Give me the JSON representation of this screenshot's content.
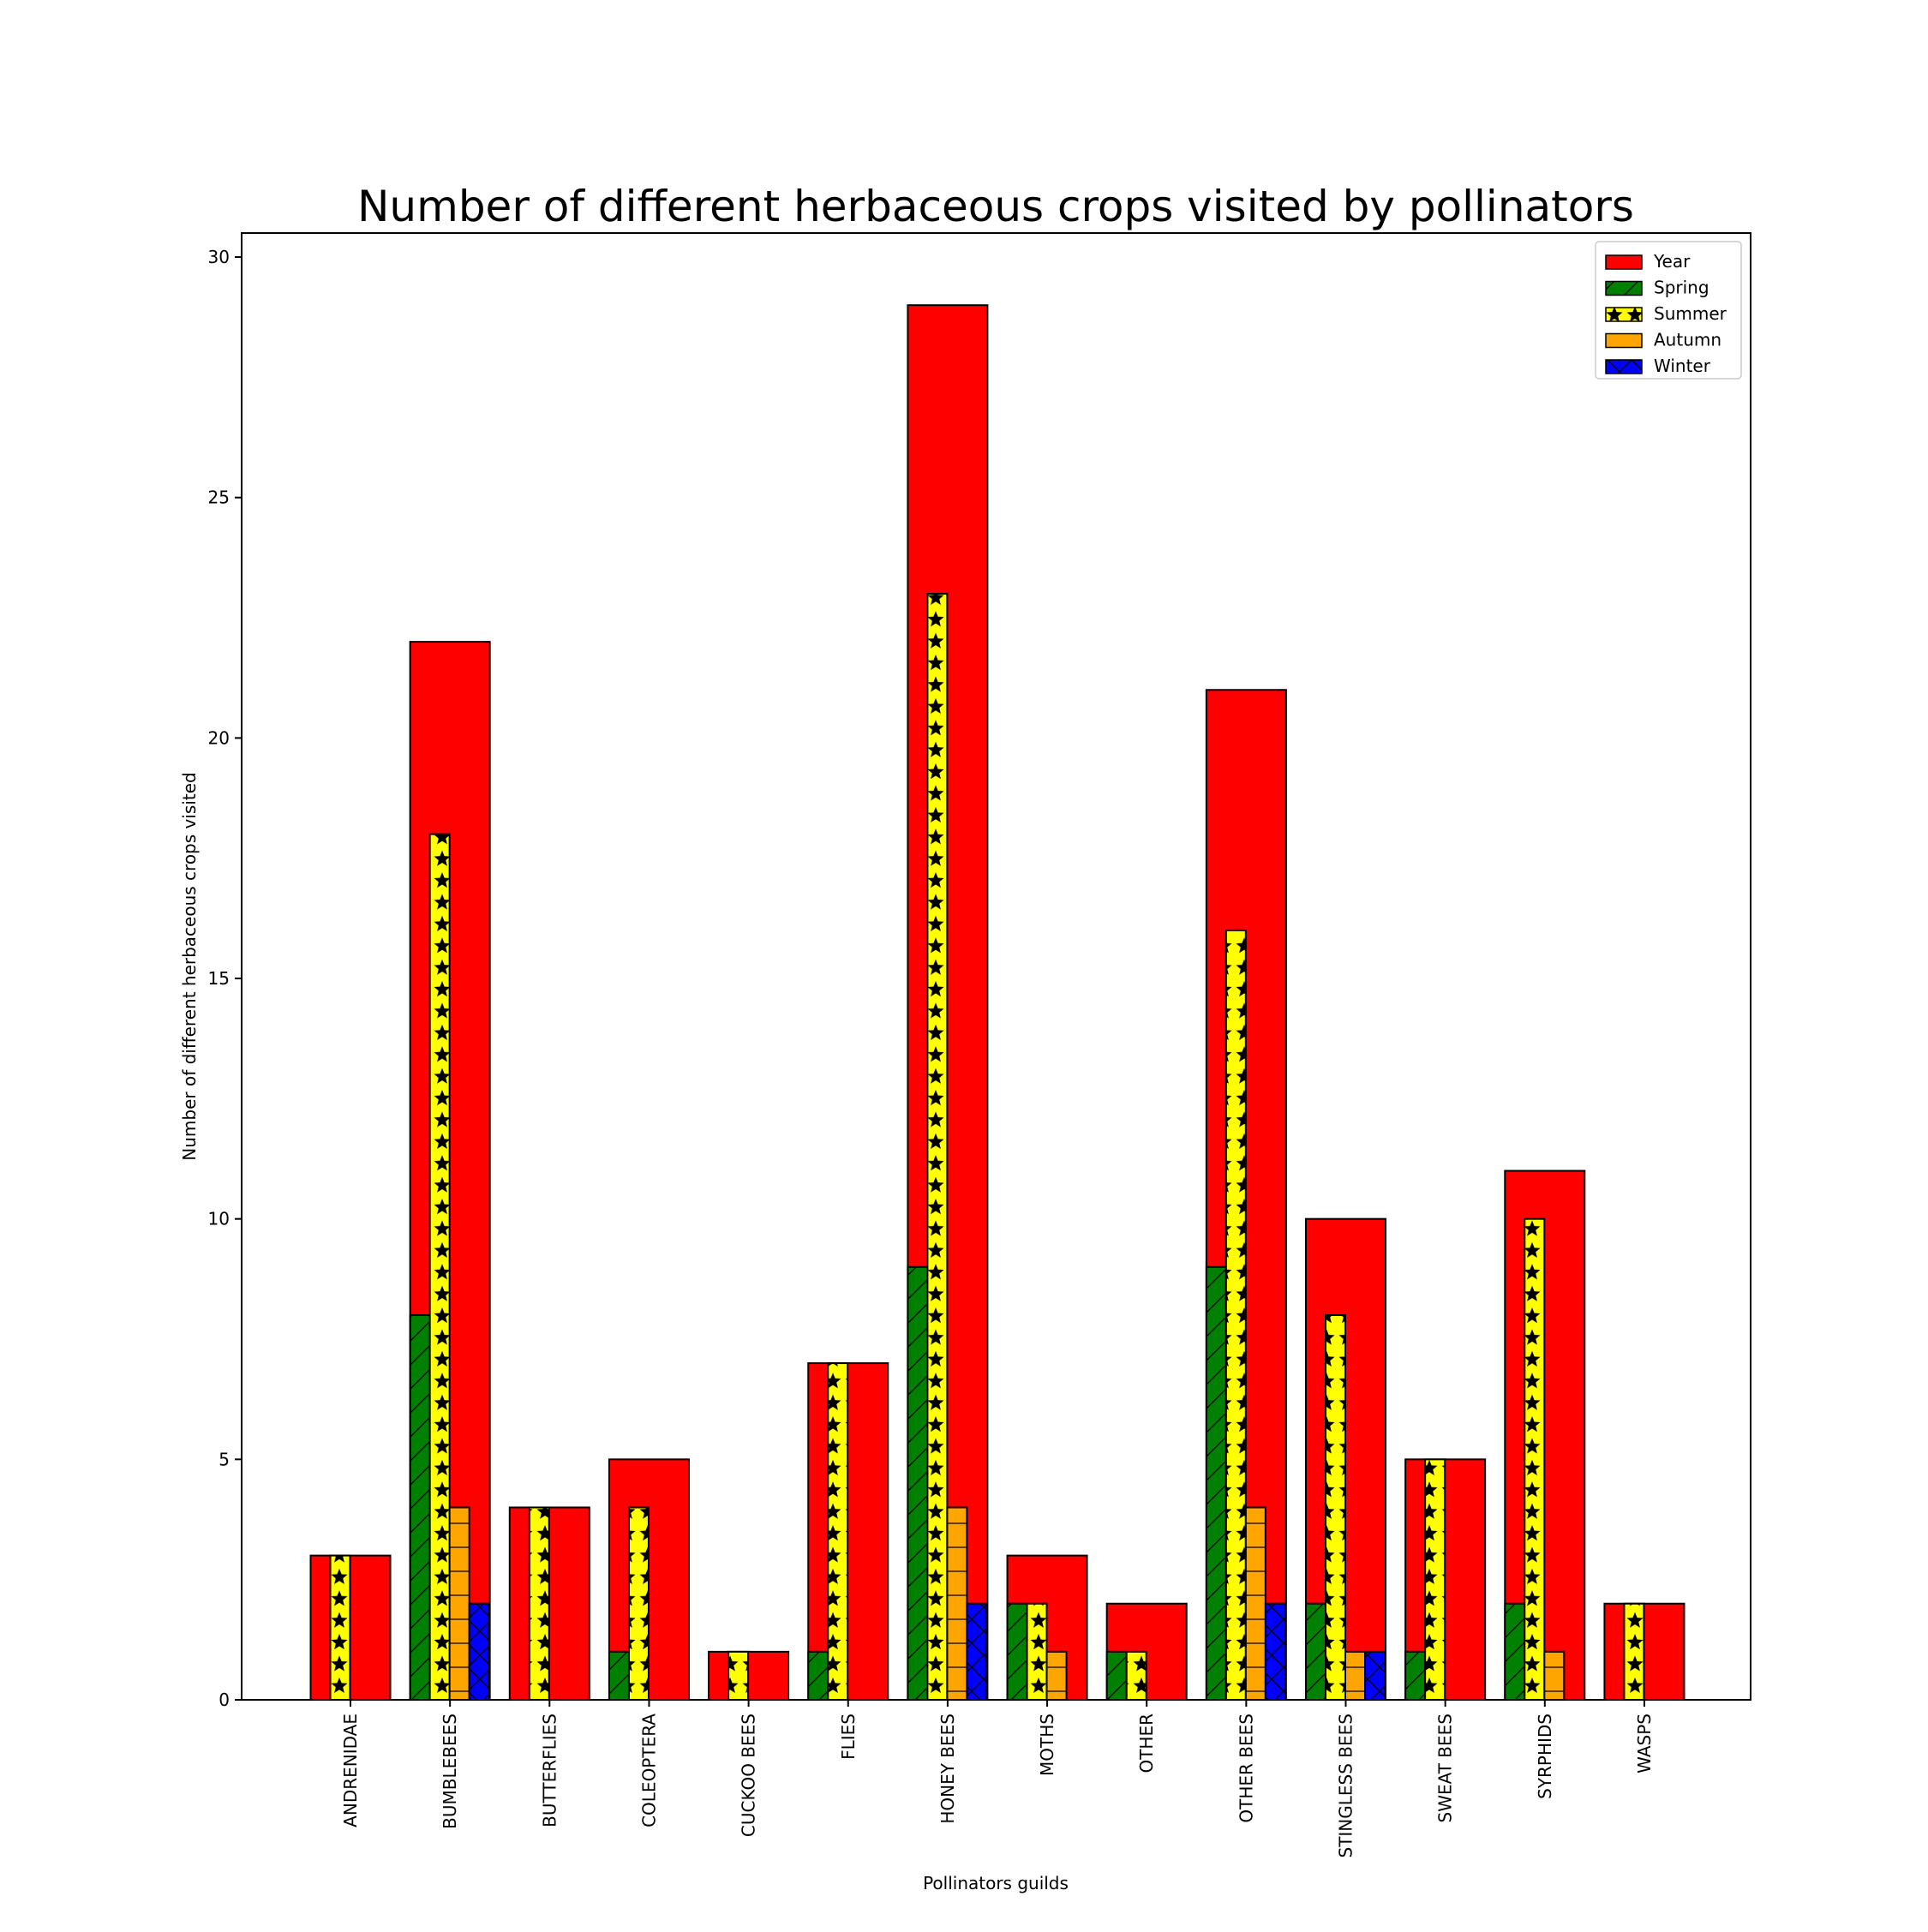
{
  "colors": {
    "Year": "#ff0000",
    "Spring": "#008000",
    "Summer": "#ffff00",
    "Autumn": "#ffa500",
    "Winter": "#0000ff"
  },
  "chart_data": {
    "type": "bar",
    "title": "Number of different herbaceous crops visited by pollinators",
    "xlabel": "Pollinators guilds",
    "ylabel": "Number of different herbaceous crops visited",
    "ylim": [
      0,
      30.5
    ],
    "yticks": [
      0,
      5,
      10,
      15,
      20,
      25,
      30
    ],
    "grid": false,
    "legend_position": "top-right",
    "categories": [
      "ANDRENIDAE",
      "BUMBLEBEES",
      "BUTTERFLIES",
      "COLEOPTERA",
      "CUCKOO BEES",
      "FLIES",
      "HONEY BEES",
      "MOTHS",
      "OTHER",
      "OTHER BEES",
      "STINGLESS BEES",
      "SWEAT BEES",
      "SYRPHIDS",
      "WASPS"
    ],
    "series": [
      {
        "name": "Year",
        "hatch": "none",
        "values": [
          3,
          22,
          4,
          5,
          1,
          7,
          29,
          3,
          2,
          21,
          10,
          5,
          11,
          2
        ]
      },
      {
        "name": "Spring",
        "hatch": "diagonal",
        "values": [
          0,
          8,
          0,
          1,
          0,
          1,
          9,
          2,
          1,
          9,
          2,
          1,
          2,
          0
        ]
      },
      {
        "name": "Summer",
        "hatch": "stars",
        "values": [
          3,
          18,
          4,
          4,
          1,
          7,
          23,
          2,
          1,
          16,
          8,
          5,
          10,
          2
        ]
      },
      {
        "name": "Autumn",
        "hatch": "horizontal",
        "values": [
          0,
          4,
          0,
          0,
          0,
          0,
          4,
          1,
          0,
          4,
          1,
          0,
          1,
          0
        ]
      },
      {
        "name": "Winter",
        "hatch": "cross",
        "values": [
          0,
          2,
          0,
          0,
          0,
          0,
          2,
          0,
          0,
          2,
          1,
          0,
          0,
          0
        ]
      }
    ]
  }
}
